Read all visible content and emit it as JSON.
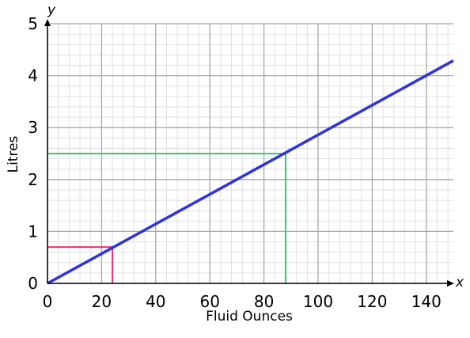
{
  "chart_data": {
    "type": "line",
    "x_axis_letter": "x",
    "y_axis_letter": "y",
    "xlabel": "Fluid Ounces",
    "ylabel": "Litres",
    "xlim": [
      0,
      150
    ],
    "ylim": [
      0,
      5
    ],
    "x_ticks": [
      0,
      20,
      40,
      60,
      80,
      100,
      120,
      140
    ],
    "y_ticks": [
      0,
      1,
      2,
      3,
      4,
      5
    ],
    "x_tick_labels": [
      "0",
      "20",
      "40",
      "60",
      "80",
      "100",
      "120",
      "140"
    ],
    "y_tick_labels": [
      "0",
      "1",
      "2",
      "3",
      "4",
      "5"
    ],
    "grid": true,
    "series": [
      {
        "x": [
          0,
          150
        ],
        "y": [
          0,
          4.29
        ],
        "color": "#2d33e0"
      }
    ],
    "guides": [
      {
        "x": 24,
        "y": 0.7,
        "color": "#ee2f73"
      },
      {
        "x": 88,
        "y": 2.5,
        "color": "#2ecc71"
      }
    ],
    "colors": {
      "major_grid": "#a8a8a8",
      "minor_grid": "#dadada",
      "axis": "#000000"
    }
  }
}
